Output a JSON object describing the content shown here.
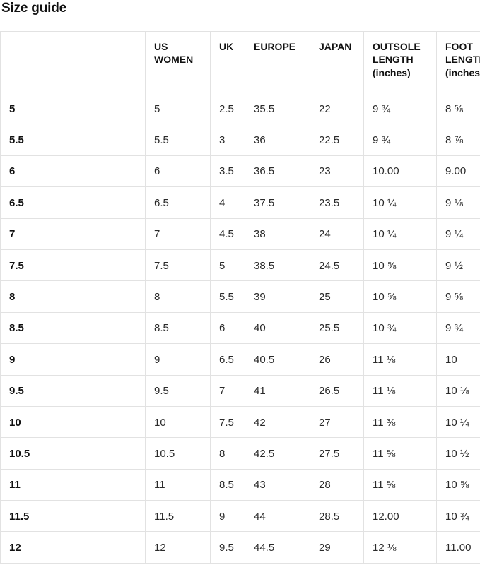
{
  "page": {
    "title": "Size guide"
  },
  "table": {
    "columns": [
      {
        "key": "size",
        "label": ""
      },
      {
        "key": "us_women",
        "label": "US WOMEN"
      },
      {
        "key": "uk",
        "label": "UK"
      },
      {
        "key": "europe",
        "label": "EUROPE"
      },
      {
        "key": "japan",
        "label": "JAPAN"
      },
      {
        "key": "outsole_length",
        "label": "OUTSOLE LENGTH (inches)"
      },
      {
        "key": "foot_length",
        "label": "FOOT LENGTH (inches)"
      }
    ],
    "rows": [
      [
        "5",
        "5",
        "2.5",
        "35.5",
        "22",
        "9 ¾",
        "8 ⅝"
      ],
      [
        "5.5",
        "5.5",
        "3",
        "36",
        "22.5",
        "9 ¾",
        "8 ⅞"
      ],
      [
        "6",
        "6",
        "3.5",
        "36.5",
        "23",
        "10.00",
        "9.00"
      ],
      [
        "6.5",
        "6.5",
        "4",
        "37.5",
        "23.5",
        "10 ¼",
        "9 ⅛"
      ],
      [
        "7",
        "7",
        "4.5",
        "38",
        "24",
        "10 ¼",
        "9 ¼"
      ],
      [
        "7.5",
        "7.5",
        "5",
        "38.5",
        "24.5",
        "10 ⅝",
        "9 ½"
      ],
      [
        "8",
        "8",
        "5.5",
        "39",
        "25",
        "10 ⅝",
        "9 ⅝"
      ],
      [
        "8.5",
        "8.5",
        "6",
        "40",
        "25.5",
        "10 ¾",
        "9 ¾"
      ],
      [
        "9",
        "9",
        "6.5",
        "40.5",
        "26",
        "11 ⅛",
        "10"
      ],
      [
        "9.5",
        "9.5",
        "7",
        "41",
        "26.5",
        "11 ⅛",
        "10 ⅛"
      ],
      [
        "10",
        "10",
        "7.5",
        "42",
        "27",
        "11 ⅜",
        "10 ¼"
      ],
      [
        "10.5",
        "10.5",
        "8",
        "42.5",
        "27.5",
        "11 ⅝",
        "10 ½"
      ],
      [
        "11",
        "11",
        "8.5",
        "43",
        "28",
        "11 ⅝",
        "10 ⅝"
      ],
      [
        "11.5",
        "11.5",
        "9",
        "44",
        "28.5",
        "12.00",
        "10 ¾"
      ],
      [
        "12",
        "12",
        "9.5",
        "44.5",
        "29",
        "12 ⅛",
        "11.00"
      ]
    ]
  }
}
